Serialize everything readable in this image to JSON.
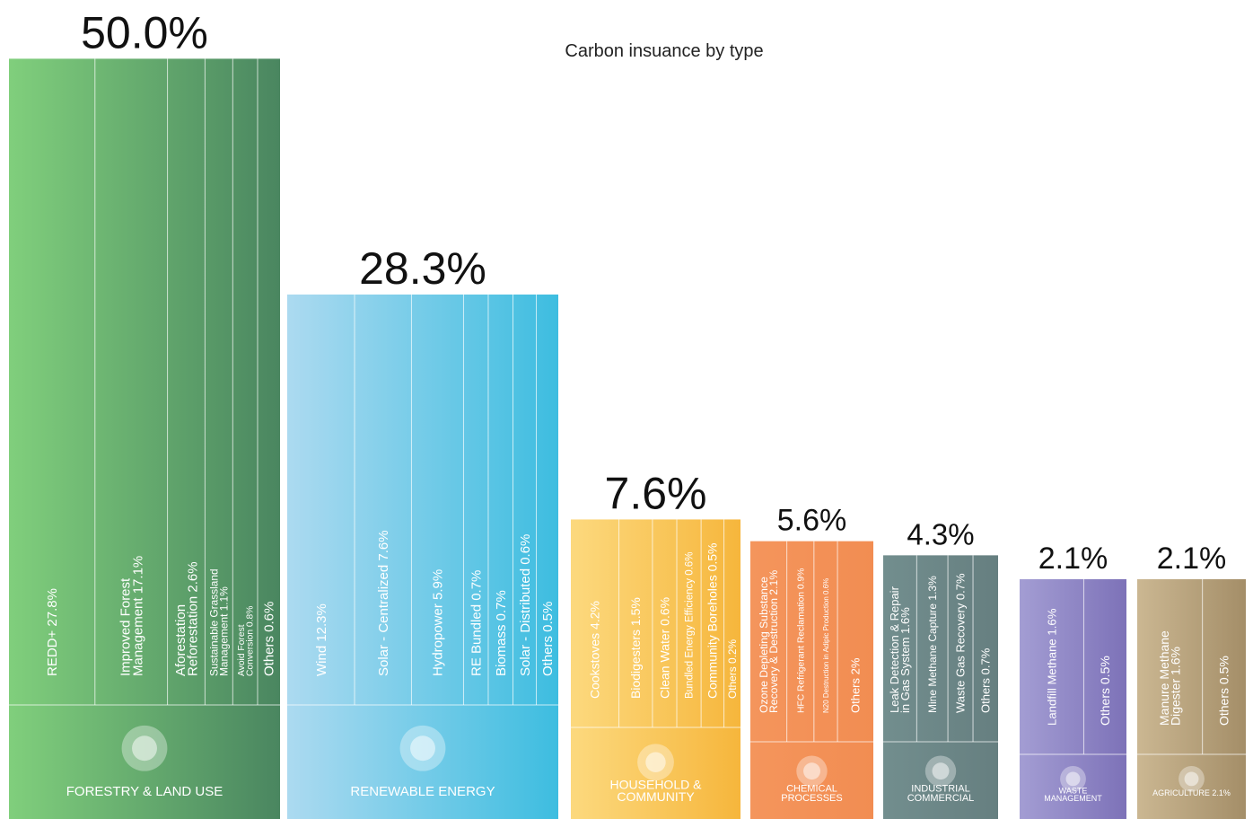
{
  "chart_data": {
    "type": "bar",
    "title": "Carbon insuance by type",
    "categories": [
      [
        "FORESTRY & LAND USE"
      ],
      [
        "RENEWABLE ENERGY"
      ],
      [
        "HOUSEHOLD &",
        "COMMUNITY"
      ],
      [
        "CHEMICAL",
        "PROCESSES"
      ],
      [
        "INDUSTRIAL",
        "COMMERCIAL"
      ],
      [
        "WASTE",
        "MANAGEMENT"
      ],
      [
        "AGRICULTURE 2.1%"
      ]
    ],
    "values": [
      50.0,
      28.3,
      7.6,
      5.6,
      4.3,
      2.1,
      2.1
    ],
    "value_labels": [
      "50.0%",
      "28.3%",
      "7.6%",
      "5.6%",
      "4.3%",
      "2.1%",
      "2.1%"
    ],
    "colors": [
      [
        "#80cf7c",
        "#4a8660"
      ],
      [
        "#acdaf0",
        "#3dbde0"
      ],
      [
        "#fcd97e",
        "#f6b63c"
      ],
      [
        "#f4955c",
        "#f28d52"
      ],
      [
        "#728e8e",
        "#667f80"
      ],
      [
        "#a39dd3",
        "#7d72b8"
      ],
      [
        "#cbb792",
        "#a48e68"
      ]
    ],
    "segments": [
      [
        {
          "label": [
            "REDD+ 27.8%"
          ],
          "value": 27.8
        },
        {
          "label": [
            "Improved Forest",
            "Management 17.1%"
          ],
          "value": 17.1
        },
        {
          "label": [
            "Aforestation",
            "Reforestation 2.6%"
          ],
          "value": 2.6
        },
        {
          "label": [
            "Sustainable Grassland",
            "Management 1.1%"
          ],
          "value": 1.1
        },
        {
          "label": [
            "Avoid Forest",
            "Conversion 0.8%"
          ],
          "value": 0.8
        },
        {
          "label": [
            "Others 0.6%"
          ],
          "value": 0.6
        }
      ],
      [
        {
          "label": [
            "Wind 12.3%"
          ],
          "value": 12.3
        },
        {
          "label": [
            "Solar - Centralized 7.6%"
          ],
          "value": 7.6
        },
        {
          "label": [
            "Hydropower 5.9%"
          ],
          "value": 5.9
        },
        {
          "label": [
            "RE Bundled 0.7%"
          ],
          "value": 0.7
        },
        {
          "label": [
            "Biomass 0.7%"
          ],
          "value": 0.7
        },
        {
          "label": [
            "Solar - Distributed 0.6%"
          ],
          "value": 0.6
        },
        {
          "label": [
            "Others 0.5%"
          ],
          "value": 0.5
        }
      ],
      [
        {
          "label": [
            "Cookstoves 4.2%"
          ],
          "value": 4.2
        },
        {
          "label": [
            "Biodigesters 1.5%"
          ],
          "value": 1.5
        },
        {
          "label": [
            "Clean Water 0.6%"
          ],
          "value": 0.6
        },
        {
          "label": [
            "Bundled Energy Efficiency 0.6%"
          ],
          "value": 0.6
        },
        {
          "label": [
            "Community Boreholes 0.5%"
          ],
          "value": 0.5
        },
        {
          "label": [
            "Others 0.2%"
          ],
          "value": 0.2
        }
      ],
      [
        {
          "label": [
            "Ozone Depleting Substance",
            "Recovery & Destruction 2.1%"
          ],
          "value": 2.1
        },
        {
          "label": [
            "HFC Refrigerant Reclamation 0.9%"
          ],
          "value": 0.9
        },
        {
          "label": [
            "N20 Destruction in Adipic Production 0.6%"
          ],
          "value": 0.6
        },
        {
          "label": [
            "Others 2%"
          ],
          "value": 2
        }
      ],
      [
        {
          "label": [
            "Leak Detection & Repair",
            "in Gas System 1.6%"
          ],
          "value": 1.6
        },
        {
          "label": [
            "Mine Methane Capture 1.3%"
          ],
          "value": 1.3
        },
        {
          "label": [
            "Waste Gas Recovery 0.7%"
          ],
          "value": 0.7
        },
        {
          "label": [
            "Others 0.7%"
          ],
          "value": 0.7
        }
      ],
      [
        {
          "label": [
            "Landfill Methane 1.6%"
          ],
          "value": 1.6
        },
        {
          "label": [
            "Others 0.5%"
          ],
          "value": 0.5
        }
      ],
      [
        {
          "label": [
            "Manure Methane",
            "Digester 1.6%"
          ],
          "value": 1.6
        },
        {
          "label": [
            "Others 0.5%"
          ],
          "value": 0.5
        }
      ]
    ]
  }
}
